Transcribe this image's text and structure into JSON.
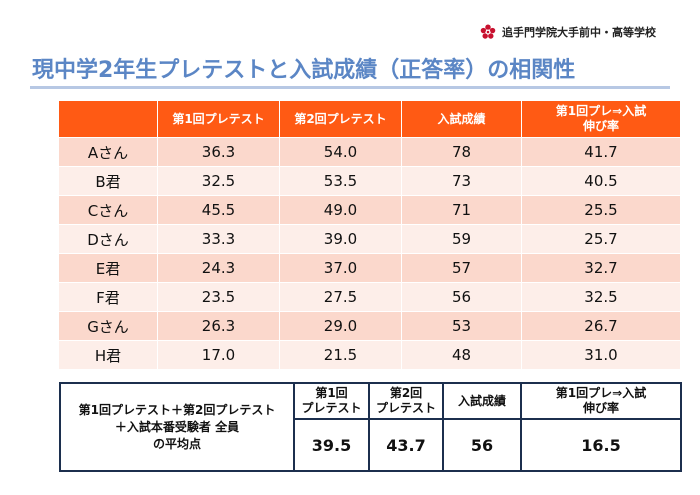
{
  "school": {
    "name": "追手門学院大手前中・高等学校",
    "accent_color": "#c8102e"
  },
  "slide": {
    "title": "現中学2年生プレテストと入試成績（正答率）の相関性"
  },
  "table": {
    "headers": [
      "",
      "第1回プレテスト",
      "第2回プレテスト",
      "入試成績",
      "第1回プレ⇒入試\n伸び率"
    ],
    "rows": [
      {
        "name": "Aさん",
        "pre1": "36.3",
        "pre2": "54.0",
        "exam": "78",
        "growth": "41.7"
      },
      {
        "name": "B君",
        "pre1": "32.5",
        "pre2": "53.5",
        "exam": "73",
        "growth": "40.5"
      },
      {
        "name": "Cさん",
        "pre1": "45.5",
        "pre2": "49.0",
        "exam": "71",
        "growth": "25.5"
      },
      {
        "name": "Dさん",
        "pre1": "33.3",
        "pre2": "39.0",
        "exam": "59",
        "growth": "25.7"
      },
      {
        "name": "E君",
        "pre1": "24.3",
        "pre2": "37.0",
        "exam": "57",
        "growth": "32.7"
      },
      {
        "name": "F君",
        "pre1": "23.5",
        "pre2": "27.5",
        "exam": "56",
        "growth": "32.5"
      },
      {
        "name": "Gさん",
        "pre1": "26.3",
        "pre2": "29.0",
        "exam": "53",
        "growth": "26.7"
      },
      {
        "name": "H君",
        "pre1": "17.0",
        "pre2": "21.5",
        "exam": "48",
        "growth": "31.0"
      }
    ],
    "header_color": "#ff5a14",
    "row_colors": [
      "#fbd8cc",
      "#fdeee9"
    ]
  },
  "summary": {
    "label": "第1回プレテスト＋第2回プレテスト\n＋入試本番受験者 全員\nの平均点",
    "headers": [
      "第1回\nプレテスト",
      "第2回\nプレテスト",
      "入試成績",
      "第1回プレ⇒入試\n伸び率"
    ],
    "values": [
      "39.5",
      "43.7",
      "56",
      "16.5"
    ]
  }
}
